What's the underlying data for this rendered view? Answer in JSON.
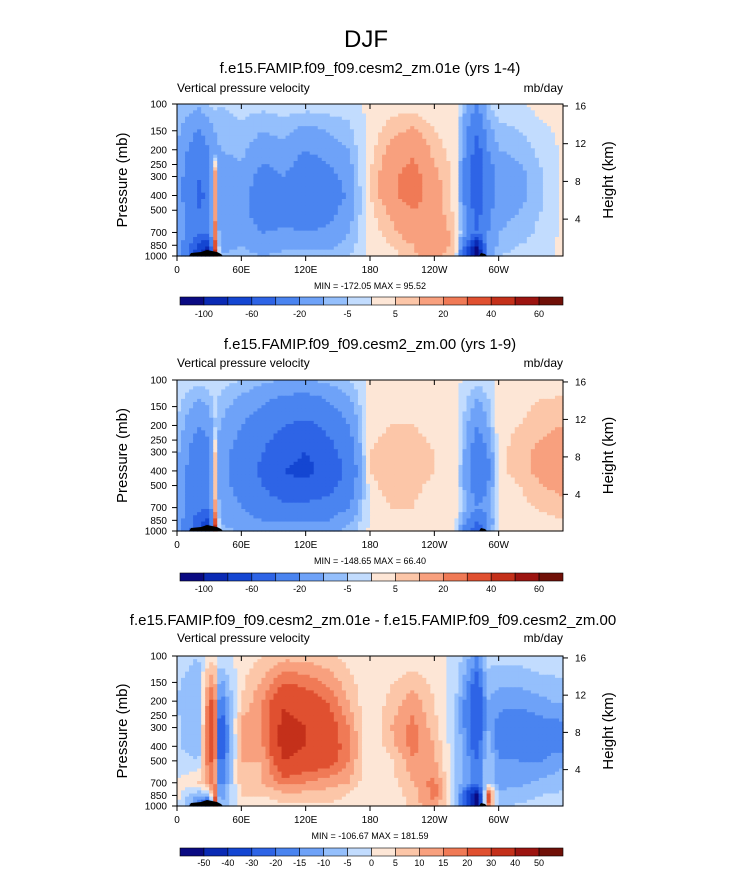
{
  "page_title": "DJF",
  "chart_data": [
    {
      "type": "contour",
      "title": "f.e15.FAMIP.f09_f09.cesm2_zm.01e (yrs 1-4)",
      "left_label": "Vertical pressure velocity",
      "right_label": "mb/day",
      "ylabel": "Pressure (mb)",
      "y2label": "Height (km)",
      "x_ticks": [
        "0",
        "60E",
        "120E",
        "180",
        "120W",
        "60W"
      ],
      "y_ticks": [
        "100",
        "150",
        "200",
        "250",
        "300",
        "400",
        "500",
        "700",
        "850",
        "1000"
      ],
      "y2_ticks": [
        "16",
        "12",
        "8",
        "4"
      ],
      "stats": "MIN = -172.05  MAX =  95.52",
      "colorbar_labels": [
        "-100",
        "-60",
        "-20",
        "-5",
        "5",
        "20",
        "40",
        "60"
      ],
      "colorbar_colors": [
        "#0a0a82",
        "#0a2ab4",
        "#1446d2",
        "#2e64e6",
        "#4a84f0",
        "#6ea2f8",
        "#94bffc",
        "#c2dcfe",
        "#fde6d6",
        "#fcc6a8",
        "#f8a07e",
        "#f07a56",
        "#e05030",
        "#c4301a",
        "#9c1410",
        "#701008"
      ],
      "lon_points": [
        0,
        20,
        30,
        35,
        40,
        60,
        80,
        100,
        120,
        140,
        160,
        180,
        200,
        220,
        240,
        260,
        280,
        290,
        300,
        320,
        340,
        360
      ],
      "lev_points": [
        100,
        200,
        300,
        400,
        500,
        700,
        850,
        1000
      ],
      "omega_mb_per_day": [
        [
          -5,
          -8,
          -5,
          -3,
          -5,
          -3,
          -3,
          -2,
          -2,
          -2,
          -2,
          1,
          2,
          2,
          1,
          1,
          -20,
          -5,
          -2,
          -1,
          2,
          1
        ],
        [
          -10,
          -30,
          -20,
          -15,
          -10,
          -8,
          -15,
          -12,
          -20,
          -15,
          -10,
          3,
          12,
          18,
          8,
          2,
          -50,
          -20,
          -10,
          -8,
          -3,
          1
        ],
        [
          -12,
          -40,
          -30,
          20,
          -15,
          -12,
          -25,
          -20,
          -30,
          -25,
          -15,
          5,
          18,
          25,
          12,
          3,
          -60,
          -30,
          -15,
          -12,
          -6,
          1
        ],
        [
          -12,
          -45,
          -35,
          25,
          -20,
          -15,
          -30,
          -25,
          -35,
          -30,
          -18,
          5,
          18,
          25,
          15,
          3,
          -60,
          -30,
          -15,
          -12,
          -6,
          1
        ],
        [
          -10,
          -40,
          -35,
          20,
          -20,
          -15,
          -30,
          -25,
          -30,
          -25,
          -15,
          3,
          12,
          20,
          15,
          3,
          -50,
          -25,
          -12,
          -10,
          -5,
          1
        ],
        [
          -8,
          -35,
          -40,
          30,
          -15,
          -12,
          -20,
          -18,
          -20,
          -18,
          -10,
          2,
          8,
          15,
          20,
          5,
          -40,
          -20,
          -10,
          -8,
          -3,
          1
        ],
        [
          -8,
          -60,
          -80,
          40,
          -12,
          -10,
          -15,
          -12,
          -12,
          -12,
          -8,
          1,
          5,
          10,
          20,
          5,
          -100,
          -20,
          -8,
          -5,
          -2,
          1
        ],
        [
          -5,
          -80,
          -140,
          60,
          -10,
          -8,
          -10,
          -8,
          -8,
          -8,
          -5,
          1,
          3,
          8,
          15,
          3,
          -120,
          -15,
          -5,
          -3,
          -1,
          1
        ]
      ]
    },
    {
      "type": "contour",
      "title": "f.e15.FAMIP.f09_f09.cesm2_zm.00 (yrs 1-9)",
      "left_label": "Vertical pressure velocity",
      "right_label": "mb/day",
      "ylabel": "Pressure (mb)",
      "y2label": "Height (km)",
      "x_ticks": [
        "0",
        "60E",
        "120E",
        "180",
        "120W",
        "60W"
      ],
      "y_ticks": [
        "100",
        "150",
        "200",
        "250",
        "300",
        "400",
        "500",
        "700",
        "850",
        "1000"
      ],
      "y2_ticks": [
        "16",
        "12",
        "8",
        "4"
      ],
      "stats": "MIN = -148.65  MAX =  66.40",
      "colorbar_labels": [
        "-100",
        "-60",
        "-20",
        "-5",
        "5",
        "20",
        "40",
        "60"
      ],
      "colorbar_colors": [
        "#0a0a82",
        "#0a2ab4",
        "#1446d2",
        "#2e64e6",
        "#4a84f0",
        "#6ea2f8",
        "#94bffc",
        "#c2dcfe",
        "#fde6d6",
        "#fcc6a8",
        "#f8a07e",
        "#f07a56",
        "#e05030",
        "#c4301a",
        "#9c1410",
        "#701008"
      ],
      "lon_points": [
        0,
        20,
        30,
        35,
        40,
        60,
        80,
        100,
        120,
        140,
        160,
        180,
        200,
        220,
        240,
        260,
        280,
        290,
        300,
        320,
        340,
        360
      ],
      "lev_points": [
        100,
        200,
        300,
        400,
        500,
        700,
        850,
        1000
      ],
      "omega_mb_per_day": [
        [
          -2,
          -3,
          -2,
          -2,
          -3,
          -5,
          -8,
          -10,
          -10,
          -8,
          -5,
          1,
          1,
          1,
          1,
          1,
          -3,
          -2,
          1,
          2,
          3,
          2
        ],
        [
          -5,
          -20,
          -15,
          -5,
          -10,
          -20,
          -30,
          -40,
          -45,
          -35,
          -20,
          3,
          5,
          5,
          3,
          2,
          -20,
          -10,
          3,
          5,
          8,
          10
        ],
        [
          -8,
          -30,
          -25,
          8,
          -15,
          -25,
          -40,
          -55,
          -60,
          -50,
          -30,
          5,
          8,
          8,
          5,
          3,
          -30,
          -20,
          3,
          8,
          12,
          18
        ],
        [
          -8,
          -35,
          -30,
          10,
          -15,
          -25,
          -45,
          -60,
          -65,
          -55,
          -35,
          5,
          10,
          8,
          5,
          3,
          -35,
          -25,
          3,
          8,
          12,
          18
        ],
        [
          -8,
          -35,
          -30,
          10,
          -15,
          -25,
          -40,
          -55,
          -55,
          -50,
          -30,
          3,
          8,
          6,
          4,
          2,
          -30,
          -20,
          2,
          5,
          10,
          12
        ],
        [
          -8,
          -35,
          -40,
          15,
          -12,
          -20,
          -30,
          -35,
          -35,
          -30,
          -20,
          2,
          5,
          5,
          3,
          2,
          -20,
          -15,
          2,
          3,
          6,
          8
        ],
        [
          -10,
          -50,
          -70,
          40,
          -10,
          -15,
          -20,
          -20,
          -20,
          -20,
          -12,
          1,
          3,
          3,
          2,
          1,
          -40,
          -20,
          1,
          2,
          3,
          5
        ],
        [
          -5,
          -60,
          -100,
          60,
          -8,
          -10,
          -12,
          -12,
          -12,
          -12,
          -8,
          1,
          2,
          2,
          1,
          1,
          -60,
          -15,
          1,
          1,
          2,
          3
        ]
      ]
    },
    {
      "type": "contour",
      "title": "f.e15.FAMIP.f09_f09.cesm2_zm.01e - f.e15.FAMIP.f09_f09.cesm2_zm.00",
      "left_label": "Vertical pressure velocity",
      "right_label": "mb/day",
      "ylabel": "Pressure (mb)",
      "y2label": "Height (km)",
      "x_ticks": [
        "0",
        "60E",
        "120E",
        "180",
        "120W",
        "60W"
      ],
      "y_ticks": [
        "100",
        "150",
        "200",
        "250",
        "300",
        "400",
        "500",
        "700",
        "850",
        "1000"
      ],
      "y2_ticks": [
        "16",
        "12",
        "8",
        "4"
      ],
      "stats": "MIN = -106.67  MAX = 181.59",
      "colorbar_labels": [
        "-50",
        "-40",
        "-30",
        "-20",
        "-15",
        "-10",
        "-5",
        "0",
        "5",
        "10",
        "15",
        "20",
        "30",
        "40",
        "50"
      ],
      "colorbar_colors": [
        "#0a0a82",
        "#0a2ab4",
        "#1446d2",
        "#2e64e6",
        "#4a84f0",
        "#6ea2f8",
        "#94bffc",
        "#c2dcfe",
        "#fde6d6",
        "#fcc6a8",
        "#f8a07e",
        "#f07a56",
        "#e05030",
        "#c4301a",
        "#9c1410",
        "#701008"
      ],
      "lon_points": [
        0,
        20,
        30,
        35,
        40,
        60,
        80,
        100,
        120,
        140,
        160,
        180,
        200,
        220,
        240,
        260,
        280,
        290,
        300,
        320,
        340,
        360
      ],
      "lev_points": [
        100,
        200,
        300,
        400,
        500,
        700,
        850,
        1000
      ],
      "omega_mb_per_day": [
        [
          -3,
          -5,
          3,
          3,
          -2,
          2,
          5,
          8,
          8,
          6,
          3,
          1,
          1,
          1,
          1,
          -1,
          -15,
          -3,
          -3,
          -3,
          -1,
          -1
        ],
        [
          -5,
          -10,
          20,
          20,
          -20,
          5,
          15,
          28,
          25,
          20,
          10,
          0,
          7,
          13,
          5,
          -5,
          -30,
          -10,
          -13,
          -13,
          -11,
          -9
        ],
        [
          -4,
          -10,
          25,
          25,
          -30,
          13,
          15,
          35,
          30,
          25,
          15,
          0,
          10,
          17,
          7,
          -5,
          -30,
          -10,
          -18,
          -20,
          -18,
          -17
        ],
        [
          -4,
          -10,
          25,
          25,
          -30,
          10,
          15,
          35,
          30,
          25,
          17,
          0,
          8,
          17,
          10,
          -5,
          -25,
          -5,
          -18,
          -20,
          -18,
          -17
        ],
        [
          -2,
          -5,
          20,
          20,
          -25,
          10,
          10,
          30,
          25,
          25,
          15,
          0,
          4,
          14,
          11,
          -5,
          -20,
          -5,
          -14,
          -15,
          -15,
          -11
        ],
        [
          0,
          5,
          15,
          20,
          -20,
          8,
          10,
          17,
          15,
          12,
          10,
          0,
          3,
          10,
          17,
          -5,
          -20,
          -5,
          -12,
          -11,
          -9,
          -7
        ],
        [
          2,
          -10,
          -10,
          25,
          -15,
          5,
          5,
          8,
          8,
          8,
          4,
          0,
          2,
          7,
          18,
          -5,
          -60,
          25,
          -9,
          -7,
          -5,
          -4
        ],
        [
          0,
          -20,
          -40,
          30,
          -10,
          2,
          2,
          4,
          4,
          4,
          3,
          0,
          1,
          7,
          14,
          -5,
          -60,
          20,
          -6,
          -4,
          -3,
          -2
        ]
      ]
    }
  ]
}
